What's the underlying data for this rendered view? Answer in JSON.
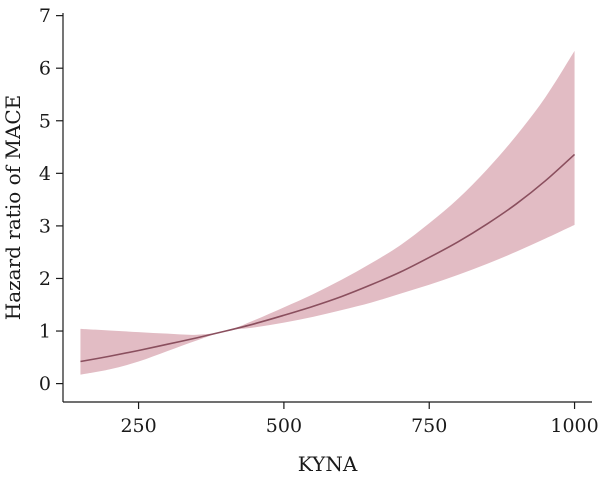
{
  "chart_data": {
    "type": "area",
    "xlabel": "KYNA",
    "ylabel": "Hazard ratio of MACE",
    "xlim": [
      120,
      1030
    ],
    "ylim": [
      -0.35,
      7.05
    ],
    "xticks": [
      250,
      500,
      750,
      1000
    ],
    "yticks": [
      0,
      1,
      2,
      3,
      4,
      5,
      6,
      7
    ],
    "grid": false,
    "legend": "none",
    "colors": {
      "band": "#e2bcc4",
      "line": "#8a4f5e",
      "axis": "#1a1a1a"
    },
    "series": [
      {
        "x": [
          150,
          200,
          250,
          300,
          350,
          400,
          450,
          500,
          550,
          600,
          650,
          700,
          750,
          800,
          850,
          900,
          950,
          1000
        ],
        "y": [
          0.42,
          0.52,
          0.63,
          0.75,
          0.87,
          1.0,
          1.14,
          1.3,
          1.47,
          1.66,
          1.88,
          2.12,
          2.4,
          2.7,
          3.04,
          3.42,
          3.86,
          4.36
        ],
        "lower": [
          0.17,
          0.27,
          0.42,
          0.62,
          0.82,
          1.0,
          1.07,
          1.16,
          1.27,
          1.4,
          1.54,
          1.71,
          1.88,
          2.07,
          2.28,
          2.51,
          2.76,
          3.02
        ],
        "upper": [
          1.04,
          1.01,
          0.98,
          0.95,
          0.93,
          1.0,
          1.21,
          1.45,
          1.7,
          1.98,
          2.29,
          2.63,
          3.05,
          3.52,
          4.08,
          4.72,
          5.45,
          6.33
        ]
      }
    ]
  }
}
